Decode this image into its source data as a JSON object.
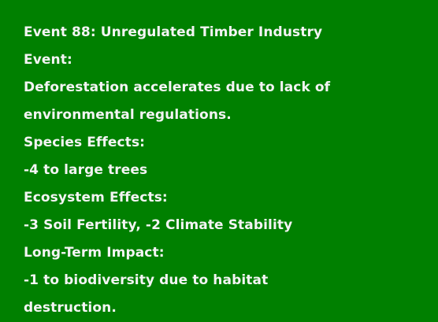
{
  "event": {
    "title": "Event 88: Unregulated Timber Industry",
    "event_heading": "Event:",
    "description_line1": "Deforestation accelerates due to lack of",
    "description_line2": "environmental regulations.",
    "species_heading": "Species Effects:",
    "species_effect": "-4 to large trees",
    "ecosystem_heading": "Ecosystem Effects:",
    "ecosystem_effect": "-3 Soil Fertility, -2 Climate Stability",
    "longterm_heading": "Long-Term Impact:",
    "longterm_line1": "-1 to biodiversity due to habitat",
    "longterm_line2": "destruction."
  },
  "colors": {
    "background": "#008000",
    "text": "#f4f4f4"
  }
}
